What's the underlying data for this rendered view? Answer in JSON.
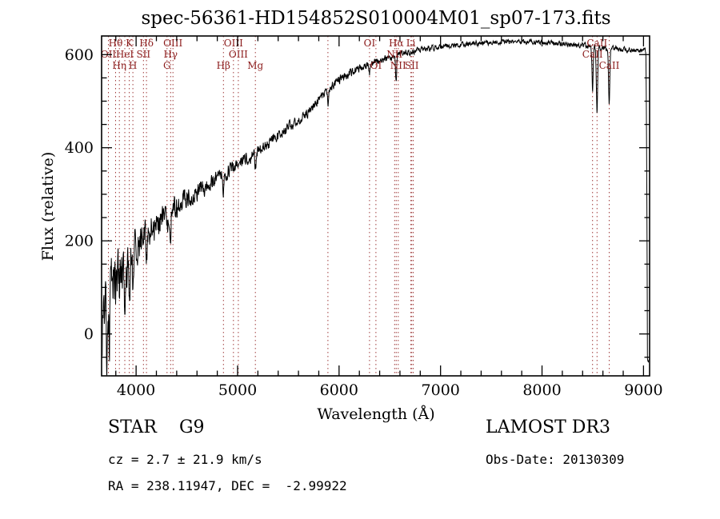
{
  "annotations": {
    "class_label": "STAR    G9",
    "survey": "LAMOST DR3",
    "cz": "cz = 2.7 ± 21.9 km/s",
    "obs_date": "Obs-Date: 20130309",
    "ra_dec": "RA = 238.11947, DEC =  -2.99922"
  },
  "chart_data": {
    "type": "line",
    "title": "spec-56361-HD154852S010004M01_sp07-173.fits",
    "xlabel": "Wavelength (Å)",
    "ylabel": "Flux (relative)",
    "xlim": [
      3660,
      9060
    ],
    "ylim": [
      -90,
      640
    ],
    "xticks_major": [
      4000,
      5000,
      6000,
      7000,
      8000,
      9000
    ],
    "xtick_minor_step": 200,
    "yticks_major": [
      0,
      200,
      400,
      600
    ],
    "ytick_minor_step": 50,
    "grid": false,
    "line_color": "#000000",
    "marker_color": "#a03c3c",
    "marker_label_color": "#8b1a1a",
    "noise_seed": 20130309,
    "continuum": [
      [
        3660,
        0
      ],
      [
        3690,
        45
      ],
      [
        3720,
        85
      ],
      [
        3760,
        105
      ],
      [
        3800,
        112
      ],
      [
        3850,
        122
      ],
      [
        3900,
        138
      ],
      [
        3950,
        158
      ],
      [
        4000,
        185
      ],
      [
        4060,
        205
      ],
      [
        4120,
        220
      ],
      [
        4180,
        233
      ],
      [
        4240,
        245
      ],
      [
        4300,
        256
      ],
      [
        4360,
        266
      ],
      [
        4420,
        276
      ],
      [
        4480,
        286
      ],
      [
        4540,
        296
      ],
      [
        4600,
        306
      ],
      [
        4700,
        322
      ],
      [
        4800,
        337
      ],
      [
        4900,
        351
      ],
      [
        5000,
        365
      ],
      [
        5100,
        379
      ],
      [
        5200,
        392
      ],
      [
        5300,
        408
      ],
      [
        5400,
        425
      ],
      [
        5500,
        443
      ],
      [
        5600,
        461
      ],
      [
        5700,
        480
      ],
      [
        5800,
        501
      ],
      [
        5900,
        525
      ],
      [
        6000,
        546
      ],
      [
        6100,
        560
      ],
      [
        6200,
        570
      ],
      [
        6300,
        580
      ],
      [
        6400,
        587
      ],
      [
        6500,
        593
      ],
      [
        6600,
        600
      ],
      [
        6700,
        606
      ],
      [
        6800,
        611
      ],
      [
        6900,
        614
      ],
      [
        7000,
        617
      ],
      [
        7200,
        622
      ],
      [
        7400,
        625
      ],
      [
        7600,
        627
      ],
      [
        7800,
        628
      ],
      [
        8000,
        626
      ],
      [
        8200,
        623
      ],
      [
        8400,
        620
      ],
      [
        8550,
        617
      ],
      [
        8700,
        613
      ],
      [
        8850,
        610
      ],
      [
        8950,
        608
      ],
      [
        9000,
        610
      ],
      [
        9015,
        612
      ],
      [
        9025,
        598
      ],
      [
        9032,
        340
      ],
      [
        9039,
        -55
      ],
      [
        9050,
        -57
      ],
      [
        9060,
        -57
      ]
    ],
    "absorption_dips": [
      [
        3712,
        150,
        5
      ],
      [
        3736,
        110,
        4
      ],
      [
        3798,
        35,
        6
      ],
      [
        3835,
        38,
        6
      ],
      [
        3889,
        42,
        6
      ],
      [
        3933,
        70,
        8
      ],
      [
        3968,
        64,
        8
      ],
      [
        4102,
        55,
        7
      ],
      [
        4305,
        40,
        9
      ],
      [
        4340,
        48,
        7
      ],
      [
        4861,
        45,
        8
      ],
      [
        5175,
        30,
        10
      ],
      [
        5893,
        25,
        8
      ],
      [
        6300,
        18,
        6
      ],
      [
        6563,
        55,
        8
      ],
      [
        8498,
        95,
        8
      ],
      [
        8542,
        140,
        9
      ],
      [
        8662,
        120,
        9
      ]
    ],
    "noise_profile": [
      [
        3660,
        60
      ],
      [
        3720,
        68
      ],
      [
        3800,
        52
      ],
      [
        3900,
        48
      ],
      [
        4000,
        36
      ],
      [
        4150,
        30
      ],
      [
        4300,
        24
      ],
      [
        4500,
        19
      ],
      [
        4700,
        16
      ],
      [
        5000,
        13
      ],
      [
        5300,
        11
      ],
      [
        5600,
        10
      ],
      [
        5900,
        9
      ],
      [
        6200,
        8
      ],
      [
        6500,
        6.5
      ],
      [
        6800,
        5.5
      ],
      [
        7200,
        5
      ],
      [
        7600,
        4.5
      ],
      [
        8000,
        4.5
      ],
      [
        8400,
        5
      ],
      [
        8700,
        5.5
      ],
      [
        8950,
        5
      ],
      [
        9060,
        4
      ]
    ],
    "spectral_lines": [
      {
        "wl": 3727,
        "label": "OII",
        "row": 1
      },
      {
        "wl": 3798,
        "label": "Hθ",
        "row": 0
      },
      {
        "wl": 3835,
        "label": "Hη",
        "row": 2
      },
      {
        "wl": 3889,
        "label": "HeI",
        "row": 1
      },
      {
        "wl": 3933,
        "label": "K",
        "row": 0
      },
      {
        "wl": 3968,
        "label": "H",
        "row": 2
      },
      {
        "wl": 4072,
        "label": "SII",
        "row": 1
      },
      {
        "wl": 4102,
        "label": "Hδ",
        "row": 0
      },
      {
        "wl": 4305,
        "label": "G",
        "row": 2
      },
      {
        "wl": 4340,
        "label": "Hγ",
        "row": 1
      },
      {
        "wl": 4363,
        "label": "OIII",
        "row": 0
      },
      {
        "wl": 4861,
        "label": "Hβ",
        "row": 2
      },
      {
        "wl": 4959,
        "label": "OIII",
        "row": 0
      },
      {
        "wl": 5007,
        "label": "OIII",
        "row": 1
      },
      {
        "wl": 5175,
        "label": "Mg",
        "row": 2
      },
      {
        "wl": 5890,
        "label": "",
        "row": 0
      },
      {
        "wl": 6300,
        "label": "OI",
        "row": 0
      },
      {
        "wl": 6363,
        "label": "OI",
        "row": 2
      },
      {
        "wl": 6548,
        "label": "NII",
        "row": 1
      },
      {
        "wl": 6563,
        "label": "Hα",
        "row": 0
      },
      {
        "wl": 6583,
        "label": "NII",
        "row": 2
      },
      {
        "wl": 6708,
        "label": "Li",
        "row": 0
      },
      {
        "wl": 6716,
        "label": "SII",
        "row": 2
      },
      {
        "wl": 6731,
        "label": "",
        "row": 1
      },
      {
        "wl": 8498,
        "label": "CaII",
        "row": 1
      },
      {
        "wl": 8542,
        "label": "CaII",
        "row": 0
      },
      {
        "wl": 8662,
        "label": "CaII",
        "row": 2
      }
    ]
  }
}
